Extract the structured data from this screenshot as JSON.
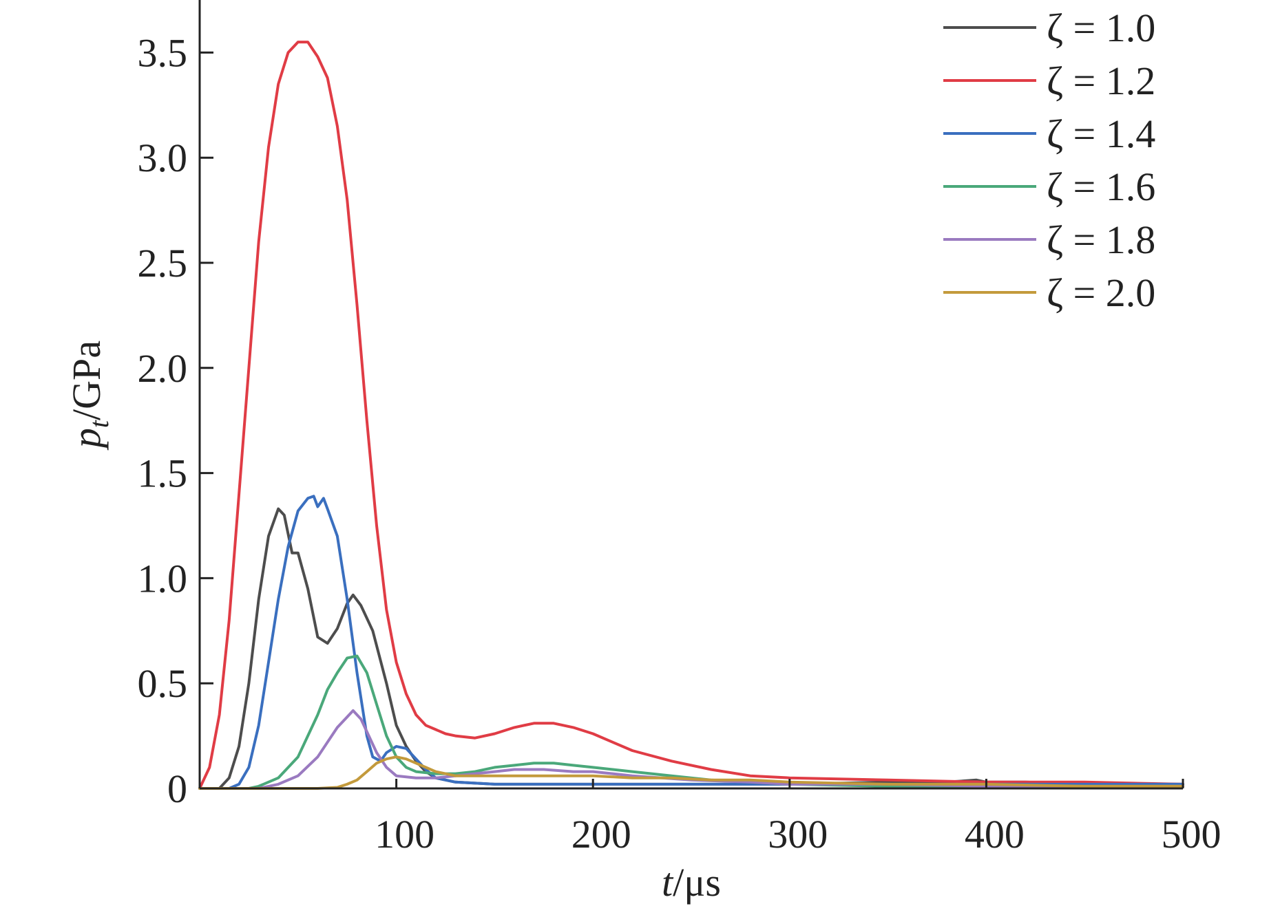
{
  "chart_data": {
    "type": "line",
    "title": "",
    "xlabel": {
      "var": "t",
      "unit": "/μs"
    },
    "ylabel": {
      "var": "p",
      "sub": "t",
      "unit": "/GPa"
    },
    "xlim": [
      0,
      500
    ],
    "ylim": [
      0,
      3.75
    ],
    "xticks": [
      {
        "value": 100,
        "label": "100"
      },
      {
        "value": 200,
        "label": "200"
      },
      {
        "value": 300,
        "label": "300"
      },
      {
        "value": 400,
        "label": "400"
      },
      {
        "value": 500,
        "label": "500"
      }
    ],
    "yticks": [
      {
        "value": 0,
        "label": "0"
      },
      {
        "value": 0.5,
        "label": "0.5"
      },
      {
        "value": 1.0,
        "label": "1.0"
      },
      {
        "value": 1.5,
        "label": "1.5"
      },
      {
        "value": 2.0,
        "label": "2.0"
      },
      {
        "value": 2.5,
        "label": "2.5"
      },
      {
        "value": 3.0,
        "label": "3.0"
      },
      {
        "value": 3.5,
        "label": "3.5"
      }
    ],
    "grid": false,
    "legend_position": "top-right",
    "series": [
      {
        "name": "ζ = 1.0",
        "color": "#4d4d4d",
        "points": [
          [
            0,
            0
          ],
          [
            10,
            0
          ],
          [
            15,
            0.05
          ],
          [
            20,
            0.2
          ],
          [
            25,
            0.5
          ],
          [
            30,
            0.9
          ],
          [
            35,
            1.2
          ],
          [
            40,
            1.33
          ],
          [
            43,
            1.3
          ],
          [
            47,
            1.12
          ],
          [
            50,
            1.12
          ],
          [
            55,
            0.95
          ],
          [
            60,
            0.72
          ],
          [
            65,
            0.69
          ],
          [
            70,
            0.76
          ],
          [
            75,
            0.88
          ],
          [
            78,
            0.92
          ],
          [
            82,
            0.87
          ],
          [
            88,
            0.75
          ],
          [
            95,
            0.5
          ],
          [
            100,
            0.3
          ],
          [
            105,
            0.2
          ],
          [
            110,
            0.13
          ],
          [
            115,
            0.08
          ],
          [
            120,
            0.05
          ],
          [
            130,
            0.03
          ],
          [
            150,
            0.02
          ],
          [
            200,
            0.02
          ],
          [
            250,
            0.02
          ],
          [
            300,
            0.02
          ],
          [
            350,
            0.03
          ],
          [
            380,
            0.03
          ],
          [
            395,
            0.04
          ],
          [
            400,
            0.03
          ],
          [
            420,
            0.03
          ],
          [
            450,
            0.02
          ],
          [
            500,
            0.02
          ]
        ]
      },
      {
        "name": "ζ = 1.2",
        "color": "#e03c45",
        "points": [
          [
            0,
            0
          ],
          [
            5,
            0.1
          ],
          [
            10,
            0.35
          ],
          [
            15,
            0.8
          ],
          [
            20,
            1.4
          ],
          [
            25,
            2.0
          ],
          [
            30,
            2.6
          ],
          [
            35,
            3.05
          ],
          [
            40,
            3.35
          ],
          [
            45,
            3.5
          ],
          [
            50,
            3.55
          ],
          [
            55,
            3.55
          ],
          [
            60,
            3.48
          ],
          [
            65,
            3.38
          ],
          [
            70,
            3.15
          ],
          [
            75,
            2.8
          ],
          [
            80,
            2.3
          ],
          [
            85,
            1.75
          ],
          [
            90,
            1.25
          ],
          [
            95,
            0.85
          ],
          [
            100,
            0.6
          ],
          [
            105,
            0.45
          ],
          [
            110,
            0.35
          ],
          [
            115,
            0.3
          ],
          [
            120,
            0.28
          ],
          [
            125,
            0.26
          ],
          [
            130,
            0.25
          ],
          [
            140,
            0.24
          ],
          [
            150,
            0.26
          ],
          [
            160,
            0.29
          ],
          [
            170,
            0.31
          ],
          [
            180,
            0.31
          ],
          [
            190,
            0.29
          ],
          [
            200,
            0.26
          ],
          [
            210,
            0.22
          ],
          [
            220,
            0.18
          ],
          [
            240,
            0.13
          ],
          [
            260,
            0.09
          ],
          [
            280,
            0.06
          ],
          [
            300,
            0.05
          ],
          [
            350,
            0.04
          ],
          [
            400,
            0.03
          ],
          [
            450,
            0.03
          ],
          [
            500,
            0.02
          ]
        ]
      },
      {
        "name": "ζ = 1.4",
        "color": "#3a6fbf",
        "points": [
          [
            0,
            0
          ],
          [
            15,
            0
          ],
          [
            20,
            0.02
          ],
          [
            25,
            0.1
          ],
          [
            30,
            0.3
          ],
          [
            35,
            0.6
          ],
          [
            40,
            0.9
          ],
          [
            45,
            1.15
          ],
          [
            50,
            1.32
          ],
          [
            55,
            1.38
          ],
          [
            58,
            1.39
          ],
          [
            60,
            1.34
          ],
          [
            63,
            1.38
          ],
          [
            65,
            1.33
          ],
          [
            70,
            1.2
          ],
          [
            75,
            0.9
          ],
          [
            80,
            0.55
          ],
          [
            85,
            0.25
          ],
          [
            88,
            0.15
          ],
          [
            92,
            0.13
          ],
          [
            95,
            0.17
          ],
          [
            100,
            0.2
          ],
          [
            105,
            0.19
          ],
          [
            110,
            0.14
          ],
          [
            115,
            0.09
          ],
          [
            120,
            0.05
          ],
          [
            130,
            0.03
          ],
          [
            150,
            0.02
          ],
          [
            200,
            0.02
          ],
          [
            250,
            0.02
          ],
          [
            300,
            0.02
          ],
          [
            400,
            0.02
          ],
          [
            500,
            0.02
          ]
        ]
      },
      {
        "name": "ζ = 1.6",
        "color": "#4aa87a",
        "points": [
          [
            0,
            0
          ],
          [
            25,
            0
          ],
          [
            30,
            0.01
          ],
          [
            40,
            0.05
          ],
          [
            50,
            0.15
          ],
          [
            60,
            0.35
          ],
          [
            65,
            0.47
          ],
          [
            70,
            0.55
          ],
          [
            75,
            0.62
          ],
          [
            80,
            0.63
          ],
          [
            85,
            0.55
          ],
          [
            90,
            0.4
          ],
          [
            95,
            0.25
          ],
          [
            100,
            0.15
          ],
          [
            105,
            0.1
          ],
          [
            110,
            0.08
          ],
          [
            120,
            0.07
          ],
          [
            130,
            0.07
          ],
          [
            140,
            0.08
          ],
          [
            150,
            0.1
          ],
          [
            160,
            0.11
          ],
          [
            170,
            0.12
          ],
          [
            180,
            0.12
          ],
          [
            190,
            0.11
          ],
          [
            200,
            0.1
          ],
          [
            220,
            0.08
          ],
          [
            240,
            0.06
          ],
          [
            260,
            0.04
          ],
          [
            280,
            0.03
          ],
          [
            300,
            0.02
          ],
          [
            350,
            0.01
          ],
          [
            400,
            0.01
          ],
          [
            500,
            0.01
          ]
        ]
      },
      {
        "name": "ζ = 1.8",
        "color": "#9a7ac0",
        "points": [
          [
            0,
            0
          ],
          [
            30,
            0
          ],
          [
            40,
            0.02
          ],
          [
            50,
            0.06
          ],
          [
            60,
            0.15
          ],
          [
            65,
            0.22
          ],
          [
            70,
            0.29
          ],
          [
            75,
            0.34
          ],
          [
            78,
            0.37
          ],
          [
            82,
            0.33
          ],
          [
            85,
            0.27
          ],
          [
            90,
            0.17
          ],
          [
            95,
            0.1
          ],
          [
            100,
            0.06
          ],
          [
            110,
            0.05
          ],
          [
            120,
            0.05
          ],
          [
            130,
            0.06
          ],
          [
            140,
            0.07
          ],
          [
            150,
            0.08
          ],
          [
            160,
            0.09
          ],
          [
            175,
            0.09
          ],
          [
            190,
            0.08
          ],
          [
            200,
            0.08
          ],
          [
            220,
            0.06
          ],
          [
            250,
            0.04
          ],
          [
            280,
            0.03
          ],
          [
            300,
            0.02
          ],
          [
            350,
            0.02
          ],
          [
            400,
            0.01
          ],
          [
            500,
            0.01
          ]
        ]
      },
      {
        "name": "ζ = 2.0",
        "color": "#c39a3c",
        "points": [
          [
            0,
            0
          ],
          [
            60,
            0
          ],
          [
            70,
            0.005
          ],
          [
            75,
            0.02
          ],
          [
            80,
            0.04
          ],
          [
            85,
            0.08
          ],
          [
            90,
            0.12
          ],
          [
            95,
            0.14
          ],
          [
            100,
            0.15
          ],
          [
            105,
            0.14
          ],
          [
            110,
            0.12
          ],
          [
            115,
            0.1
          ],
          [
            120,
            0.08
          ],
          [
            125,
            0.07
          ],
          [
            130,
            0.06
          ],
          [
            140,
            0.06
          ],
          [
            160,
            0.06
          ],
          [
            180,
            0.06
          ],
          [
            200,
            0.06
          ],
          [
            220,
            0.05
          ],
          [
            240,
            0.05
          ],
          [
            260,
            0.04
          ],
          [
            280,
            0.04
          ],
          [
            300,
            0.03
          ],
          [
            350,
            0.02
          ],
          [
            400,
            0.02
          ],
          [
            450,
            0.01
          ],
          [
            500,
            0.01
          ]
        ]
      }
    ]
  }
}
